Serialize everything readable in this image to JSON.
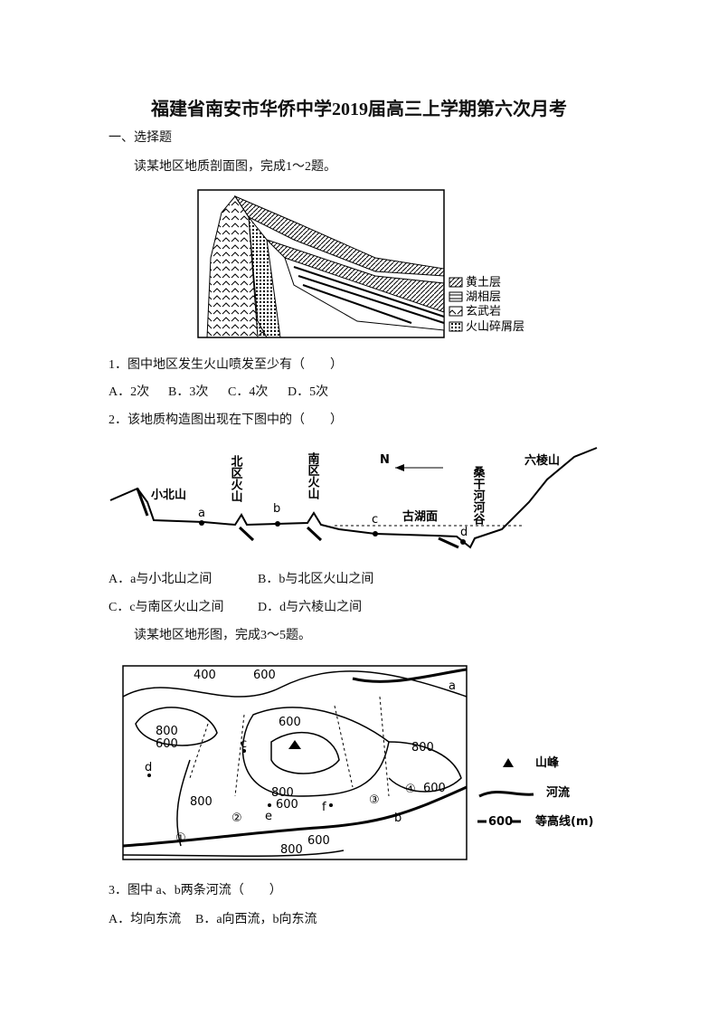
{
  "title": "福建省南安市华侨中学2019届高三上学期第六次月考",
  "section": "一、选择题",
  "intro_1": "读某地区地质剖面图，完成1～2题。",
  "figure_1": {
    "legend": [
      "黄土层",
      "湖相层",
      "玄武岩",
      "火山碎屑层"
    ]
  },
  "questions": [
    {
      "stem": "1．图中地区发生火山喷发至少有（　　）",
      "options": [
        "A．2次",
        "B．3次",
        "C．4次",
        "D．5次"
      ]
    },
    {
      "stem": "2．该地质构造图出现在下图中的（　　）",
      "options": [
        "A．a与小北山之间",
        "B．b与北区火山之间",
        "C．c与南区火山之间",
        "D．d与六棱山之间"
      ]
    },
    {
      "stem": "3．图中 a、b两条河流（　　）",
      "options": [
        "A．均向东流",
        "B．a向西流，b向东流"
      ]
    }
  ],
  "figure_2": {
    "labels": [
      "小北山",
      "北区火山",
      "南区火山",
      "N",
      "古湖面",
      "桑干河河谷",
      "六棱山",
      "a",
      "b",
      "c",
      "d"
    ]
  },
  "intro_2": "读某地区地形图，完成3～5题。",
  "figure_3": {
    "labels": [
      "400",
      "600",
      "800",
      "600",
      "600",
      "800",
      "800",
      "600",
      "800",
      "600",
      "800",
      "600",
      "a",
      "b",
      "c",
      "d",
      "e",
      "f",
      "①",
      "②",
      "③",
      "④"
    ],
    "legend": [
      "山峰",
      "河流",
      "600",
      "等高线(m)"
    ]
  }
}
